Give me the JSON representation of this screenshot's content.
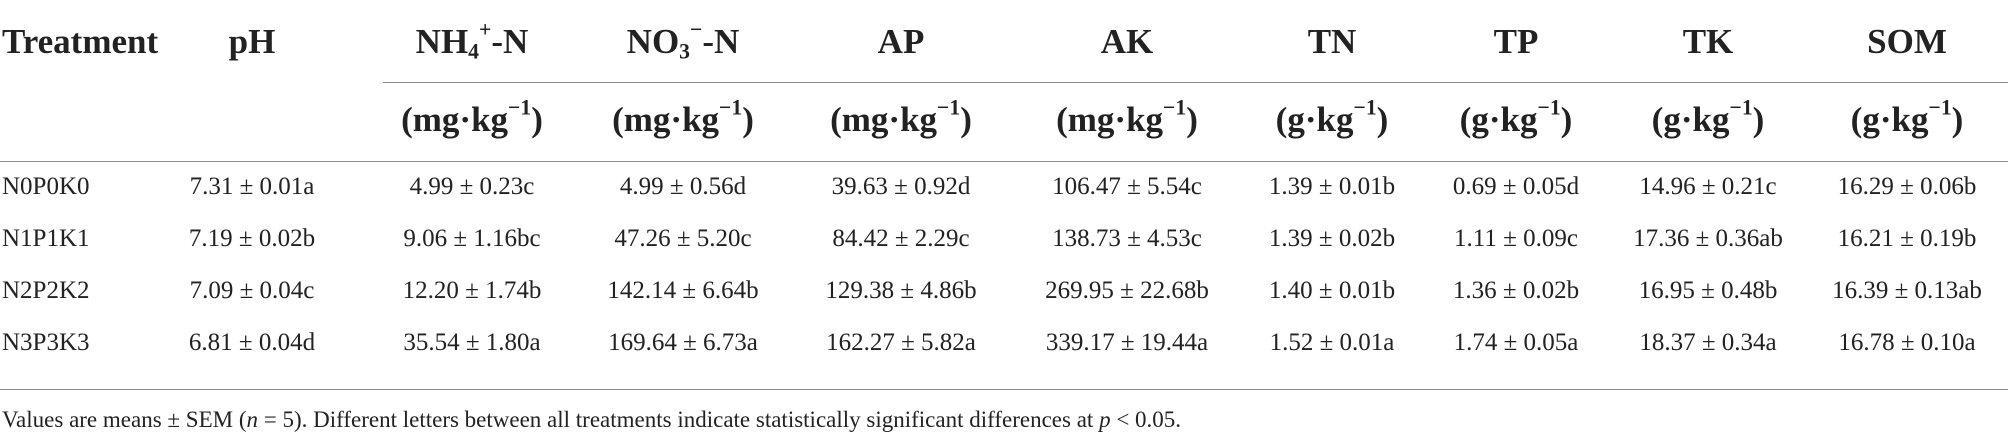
{
  "table": {
    "header_names": [
      {
        "main": "Treatment"
      },
      {
        "main": "pH"
      },
      {
        "pre": "NH",
        "sub": "4",
        "sup": "+",
        "post": "-N"
      },
      {
        "pre": "NO",
        "sub": "3",
        "sup": "−",
        "post": "-N"
      },
      {
        "main": "AP"
      },
      {
        "main": "AK"
      },
      {
        "main": "TN"
      },
      {
        "main": "TP"
      },
      {
        "main": "TK"
      },
      {
        "main": "SOM"
      }
    ],
    "header_units": [
      "",
      "",
      {
        "base": "(mg·kg",
        "sup": "−1",
        "close": ")"
      },
      {
        "base": "(mg·kg",
        "sup": "−1",
        "close": ")"
      },
      {
        "base": "(mg·kg",
        "sup": "−1",
        "close": ")"
      },
      {
        "base": "(mg·kg",
        "sup": "−1",
        "close": ")"
      },
      {
        "base": "(g·kg",
        "sup": "−1",
        "close": ")"
      },
      {
        "base": "(g·kg",
        "sup": "−1",
        "close": ")"
      },
      {
        "base": "(g·kg",
        "sup": "−1",
        "close": ")"
      },
      {
        "base": "(g·kg",
        "sup": "−1",
        "close": ")"
      }
    ],
    "rows": [
      [
        "N0P0K0",
        "7.31 ± 0.01a",
        "4.99 ± 0.23c",
        "4.99 ± 0.56d",
        "39.63 ± 0.92d",
        "106.47 ± 5.54c",
        "1.39 ± 0.01b",
        "0.69 ± 0.05d",
        "14.96 ± 0.21c",
        "16.29 ± 0.06b"
      ],
      [
        "N1P1K1",
        "7.19 ± 0.02b",
        "9.06 ± 1.16bc",
        "47.26 ± 5.20c",
        "84.42 ± 2.29c",
        "138.73 ± 4.53c",
        "1.39 ± 0.02b",
        "1.11 ± 0.09c",
        "17.36 ± 0.36ab",
        "16.21 ± 0.19b"
      ],
      [
        "N2P2K2",
        "7.09 ± 0.04c",
        "12.20 ± 1.74b",
        "142.14 ± 6.64b",
        "129.38 ± 4.86b",
        "269.95 ± 22.68b",
        "1.40 ± 0.01b",
        "1.36 ± 0.02b",
        "16.95 ± 0.48b",
        "16.39 ± 0.13ab"
      ],
      [
        "N3P3K3",
        "6.81 ± 0.04d",
        "35.54 ± 1.80a",
        "169.64 ± 6.73a",
        "162.27 ± 5.82a",
        "339.17 ± 19.44a",
        "1.52 ± 0.01a",
        "1.74 ± 0.05a",
        "18.37 ± 0.34a",
        "16.78 ± 0.10a"
      ]
    ]
  },
  "footnote": {
    "part1": "Values are means ± SEM (",
    "n_italic": "n",
    "part2": " = 5). Different letters between all treatments indicate statistically significant differences at ",
    "p_italic": "p",
    "part3": " < 0.05."
  }
}
